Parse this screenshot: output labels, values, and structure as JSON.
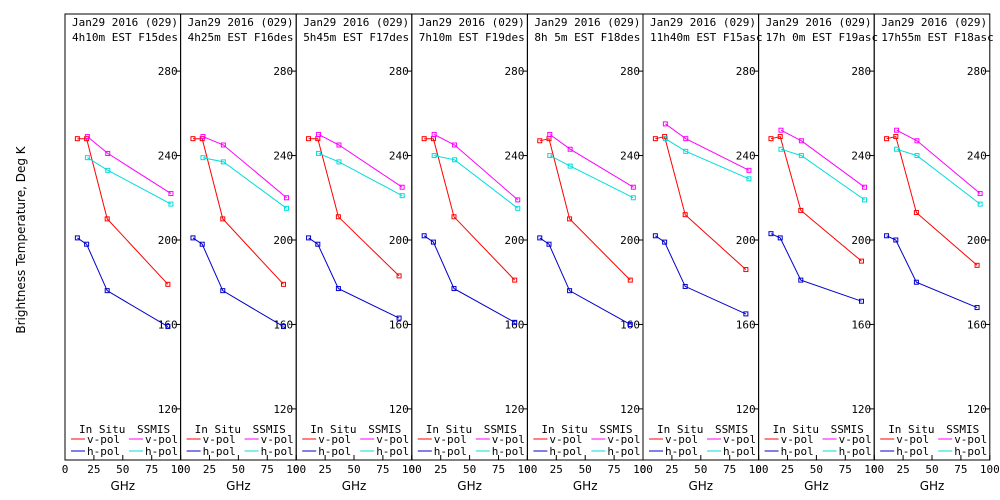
{
  "chart_data": {
    "type": "line",
    "ylabel": "Brightness Temperature, Deg K",
    "xlabel": "GHz",
    "xlim": [
      0,
      100
    ],
    "ylim": [
      110,
      290
    ],
    "x_ticks": [
      0,
      25,
      50,
      75,
      100
    ],
    "x_tick_labels": [
      "0",
      "25",
      "50",
      "75",
      "100"
    ],
    "y_ticks": [
      120,
      160,
      200,
      240,
      280
    ],
    "legend_headers": [
      "In Situ",
      "SSMIS"
    ],
    "colors": {
      "insitu_v": "#ff0000",
      "insitu_h": "#0000cc",
      "ssmis_v": "#ff00ff",
      "ssmis_h": "#00dddd"
    },
    "panels": [
      {
        "title1": "Jan29 2016 (029)",
        "title2": "4h10m EST F15des",
        "insitu_v": {
          "x": [
            10.7,
            18.7,
            36.5,
            89.0
          ],
          "y": [
            248,
            248,
            210,
            179
          ]
        },
        "insitu_h": {
          "x": [
            10.7,
            18.7,
            36.5,
            89.0
          ],
          "y": [
            201,
            198,
            176,
            159
          ]
        },
        "ssmis_v": {
          "x": [
            19.35,
            37.0,
            91.655
          ],
          "y": [
            249,
            241,
            222
          ]
        },
        "ssmis_h": {
          "x": [
            19.35,
            37.0,
            91.655
          ],
          "y": [
            239,
            233,
            217
          ]
        }
      },
      {
        "title1": "Jan29 2016 (029)",
        "title2": "4h25m EST F16des",
        "insitu_v": {
          "x": [
            10.7,
            18.7,
            36.5,
            89.0
          ],
          "y": [
            248,
            248,
            210,
            179
          ]
        },
        "insitu_h": {
          "x": [
            10.7,
            18.7,
            36.5,
            89.0
          ],
          "y": [
            201,
            198,
            176,
            159
          ]
        },
        "ssmis_v": {
          "x": [
            19.35,
            37.0,
            91.655
          ],
          "y": [
            249,
            245,
            220
          ]
        },
        "ssmis_h": {
          "x": [
            19.35,
            37.0,
            91.655
          ],
          "y": [
            239,
            237,
            215
          ]
        }
      },
      {
        "title1": "Jan29 2016 (029)",
        "title2": "5h45m EST F17des",
        "insitu_v": {
          "x": [
            10.7,
            18.7,
            36.5,
            89.0
          ],
          "y": [
            248,
            248,
            211,
            183
          ]
        },
        "insitu_h": {
          "x": [
            10.7,
            18.7,
            36.5,
            89.0
          ],
          "y": [
            201,
            198,
            177,
            163
          ]
        },
        "ssmis_v": {
          "x": [
            19.35,
            37.0,
            91.655
          ],
          "y": [
            250,
            245,
            225
          ]
        },
        "ssmis_h": {
          "x": [
            19.35,
            37.0,
            91.655
          ],
          "y": [
            241,
            237,
            221
          ]
        }
      },
      {
        "title1": "Jan29 2016 (029)",
        "title2": "7h10m EST F19des",
        "insitu_v": {
          "x": [
            10.7,
            18.7,
            36.5,
            89.0
          ],
          "y": [
            248,
            248,
            211,
            181
          ]
        },
        "insitu_h": {
          "x": [
            10.7,
            18.7,
            36.5,
            89.0
          ],
          "y": [
            202,
            199,
            177,
            161
          ]
        },
        "ssmis_v": {
          "x": [
            19.35,
            37.0,
            91.655
          ],
          "y": [
            250,
            245,
            219
          ]
        },
        "ssmis_h": {
          "x": [
            19.35,
            37.0,
            91.655
          ],
          "y": [
            240,
            238,
            215
          ]
        }
      },
      {
        "title1": "Jan29 2016 (029)",
        "title2": "8h 5m EST F18des",
        "insitu_v": {
          "x": [
            10.7,
            18.7,
            36.5,
            89.0
          ],
          "y": [
            247,
            248,
            210,
            181
          ]
        },
        "insitu_h": {
          "x": [
            10.7,
            18.7,
            36.5,
            89.0
          ],
          "y": [
            201,
            198,
            176,
            160
          ]
        },
        "ssmis_v": {
          "x": [
            19.35,
            37.0,
            91.655
          ],
          "y": [
            250,
            243,
            225
          ]
        },
        "ssmis_h": {
          "x": [
            19.35,
            37.0,
            91.655
          ],
          "y": [
            240,
            235,
            220
          ]
        }
      },
      {
        "title1": "Jan29 2016 (029)",
        "title2": "11h40m EST F15asc",
        "insitu_v": {
          "x": [
            10.7,
            18.7,
            36.5,
            89.0
          ],
          "y": [
            248,
            249,
            212,
            186
          ]
        },
        "insitu_h": {
          "x": [
            10.7,
            18.7,
            36.5,
            89.0
          ],
          "y": [
            202,
            199,
            178,
            165
          ]
        },
        "ssmis_v": {
          "x": [
            19.35,
            37.0,
            91.655
          ],
          "y": [
            255,
            248,
            233
          ]
        },
        "ssmis_h": {
          "x": [
            19.35,
            37.0,
            91.655
          ],
          "y": [
            248,
            242,
            229
          ]
        }
      },
      {
        "title1": "Jan29 2016 (029)",
        "title2": "17h 0m EST F19asc",
        "insitu_v": {
          "x": [
            10.7,
            18.7,
            36.5,
            89.0
          ],
          "y": [
            248,
            249,
            214,
            190
          ]
        },
        "insitu_h": {
          "x": [
            10.7,
            18.7,
            36.5,
            89.0
          ],
          "y": [
            203,
            201,
            181,
            171
          ]
        },
        "ssmis_v": {
          "x": [
            19.35,
            37.0,
            91.655
          ],
          "y": [
            252,
            247,
            225
          ]
        },
        "ssmis_h": {
          "x": [
            19.35,
            37.0,
            91.655
          ],
          "y": [
            243,
            240,
            219
          ]
        }
      },
      {
        "title1": "Jan29 2016 (029)",
        "title2": "17h55m EST F18asc",
        "insitu_v": {
          "x": [
            10.7,
            18.7,
            36.5,
            89.0
          ],
          "y": [
            248,
            249,
            213,
            188
          ]
        },
        "insitu_h": {
          "x": [
            10.7,
            18.7,
            36.5,
            89.0
          ],
          "y": [
            202,
            200,
            180,
            168
          ]
        },
        "ssmis_v": {
          "x": [
            19.35,
            37.0,
            91.655
          ],
          "y": [
            252,
            247,
            222
          ]
        },
        "ssmis_h": {
          "x": [
            19.35,
            37.0,
            91.655
          ],
          "y": [
            243,
            240,
            217
          ]
        }
      }
    ],
    "legend_entries": [
      {
        "group": "insitu",
        "key": "insitu_v",
        "label": "v-pol"
      },
      {
        "group": "insitu",
        "key": "insitu_h",
        "label": "h-pol"
      },
      {
        "group": "ssmis",
        "key": "ssmis_v",
        "label": "v-pol"
      },
      {
        "group": "ssmis",
        "key": "ssmis_h",
        "label": "h-pol"
      }
    ]
  }
}
